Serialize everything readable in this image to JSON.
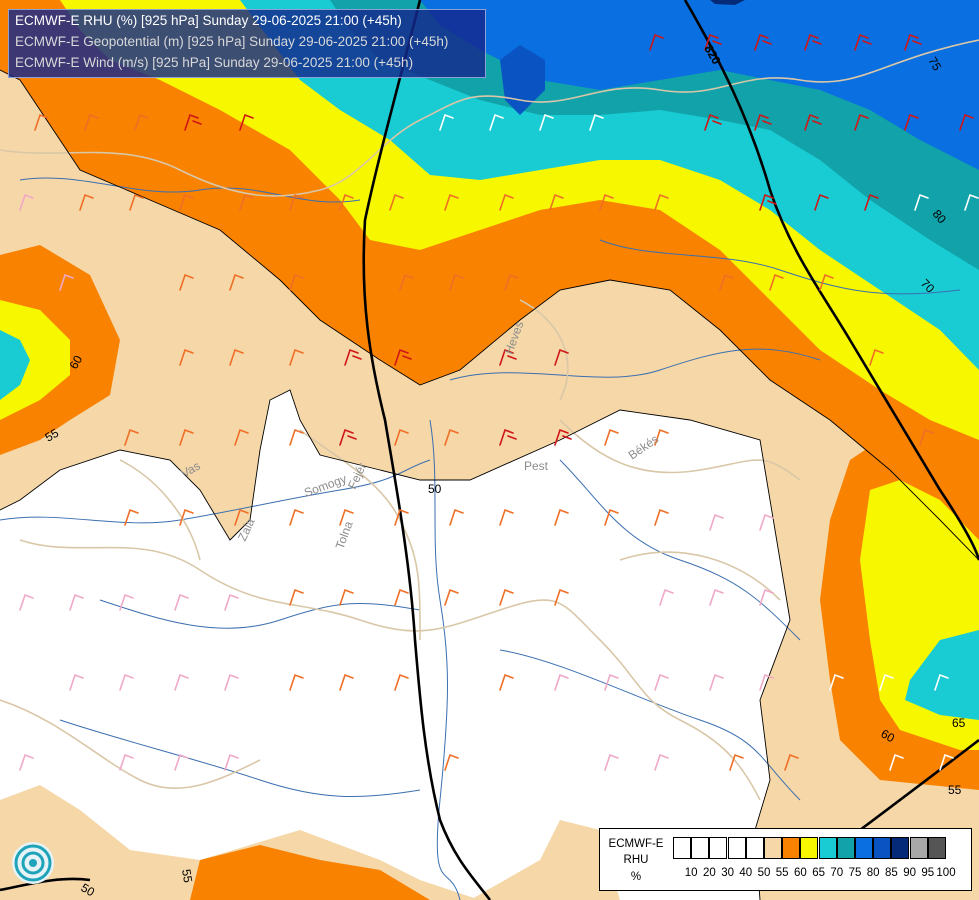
{
  "title": {
    "line1": "ECMWF-E RHU (%) [925 hPa] Sunday 29-06-2025 21:00 (+45h)",
    "line2": "ECMWF-E Geopotential (m) [925 hPa] Sunday 29-06-2025 21:00 (+45h)",
    "line3": "ECMWF-E Wind (m/s) [925 hPa] Sunday 29-06-2025 21:00 (+45h)"
  },
  "legend": {
    "model": "ECMWF-E",
    "var": "RHU",
    "unit": "%",
    "colors": [
      "#ffffff",
      "#ffffff",
      "#ffffff",
      "#ffffff",
      "#ffffff",
      "#f5d7a8",
      "#f98200",
      "#f7f700",
      "#19cbd2",
      "#12a2aa",
      "#0a6fe0",
      "#0a53c2",
      "#052b78",
      "#a8a8a8",
      "#555555"
    ],
    "ticks": [
      "10",
      "20",
      "30",
      "40",
      "50",
      "55",
      "60",
      "65",
      "70",
      "75",
      "80",
      "85",
      "90",
      "95",
      "100"
    ]
  },
  "map": {
    "contour_labels": [
      "820",
      "75",
      "80",
      "70",
      "60",
      "60",
      "55",
      "50",
      "65",
      "60",
      "55",
      "55",
      "50"
    ],
    "place_labels": [
      "Heves",
      "Pest",
      "Békés",
      "Vas",
      "Somogy",
      "Tolna",
      "Zala",
      "Fejér"
    ]
  }
}
